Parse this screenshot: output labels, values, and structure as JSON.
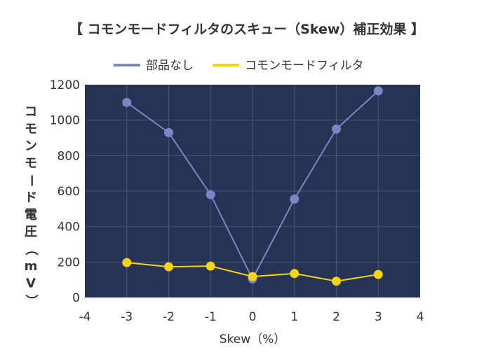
{
  "chart_data": {
    "type": "line",
    "title": "【 コモンモードフィルタのスキュー（Skew）補正効果 】",
    "xlabel": "Skew（%）",
    "ylabel": "コモンモード電圧（mV）",
    "xlim": [
      -4,
      4
    ],
    "ylim": [
      0,
      1200
    ],
    "xticks": [
      "-4",
      "-3",
      "-2",
      "-1",
      "0",
      "1",
      "2",
      "3",
      "4"
    ],
    "yticks": [
      "0",
      "200",
      "400",
      "600",
      "800",
      "1000",
      "1200"
    ],
    "x": [
      -3,
      -2,
      -1,
      0,
      1,
      2,
      3
    ],
    "series": [
      {
        "name": "部品なし",
        "color": "#7b86c7",
        "values": [
          1100,
          930,
          580,
          105,
          555,
          950,
          1165
        ]
      },
      {
        "name": "コモンモードフィルタ",
        "color": "#f2d40f",
        "values": [
          197,
          173,
          177,
          118,
          135,
          92,
          130
        ]
      }
    ],
    "grid": true,
    "legend": "top-center",
    "plot_background": "#263354"
  }
}
